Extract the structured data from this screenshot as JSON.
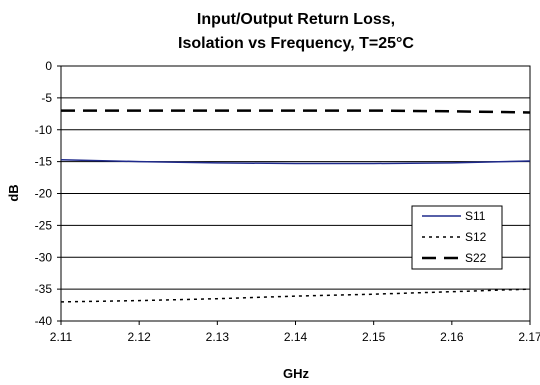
{
  "chart_data": {
    "type": "line",
    "title": [
      "Input/Output Return Loss,",
      "Isolation vs Frequency, T=25°C"
    ],
    "xlabel": "GHz",
    "ylabel": "dB",
    "xlim": [
      2.11,
      2.17
    ],
    "ylim": [
      -40,
      0
    ],
    "x_ticks": [
      "2.11",
      "2.12",
      "2.13",
      "2.14",
      "2.15",
      "2.16",
      "2.17"
    ],
    "y_ticks": [
      "0",
      "-5",
      "-10",
      "-15",
      "-20",
      "-25",
      "-30",
      "-35",
      "-40"
    ],
    "grid": true,
    "legend_position": "right-lower",
    "series": [
      {
        "name": "S11",
        "style": "solid",
        "color": "#1f2a8c",
        "x": [
          2.11,
          2.12,
          2.13,
          2.14,
          2.15,
          2.16,
          2.17
        ],
        "y": [
          -14.7,
          -15.0,
          -15.2,
          -15.3,
          -15.3,
          -15.2,
          -14.9
        ]
      },
      {
        "name": "S12",
        "style": "dotted",
        "color": "#000000",
        "x": [
          2.11,
          2.12,
          2.13,
          2.14,
          2.15,
          2.16,
          2.17
        ],
        "y": [
          -37.0,
          -36.8,
          -36.5,
          -36.1,
          -35.8,
          -35.4,
          -35.0
        ]
      },
      {
        "name": "S22",
        "style": "dashed",
        "color": "#000000",
        "x": [
          2.11,
          2.12,
          2.13,
          2.14,
          2.15,
          2.16,
          2.17
        ],
        "y": [
          -7.0,
          -7.0,
          -7.0,
          -7.0,
          -7.0,
          -7.1,
          -7.3
        ]
      }
    ]
  }
}
